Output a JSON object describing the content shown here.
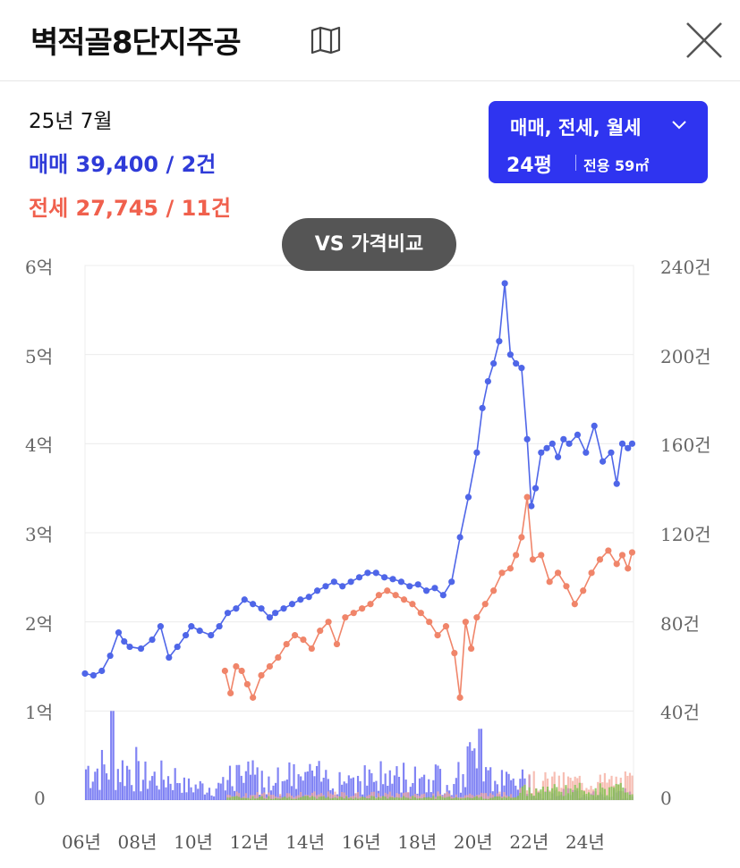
{
  "header": {
    "title": "벽적골8단지주공",
    "map_icon": "map-icon",
    "close_icon": "close-icon"
  },
  "summary": {
    "year_month": "25년 7월",
    "sale": "매매 39,400 / 2건",
    "jeonse": "전세 27,745 / 11건"
  },
  "filter": {
    "types": "매매, 전세, 월세",
    "pyeong": "24평",
    "area": "전용 59㎡"
  },
  "vs_button": "VS 가격비교",
  "colors": {
    "sale": "#4f66e8",
    "jeonse": "#f0856a",
    "volume_sale": "#4a4ff0",
    "volume_jeonse": "#f4a393",
    "volume_wolse": "#7fc24f"
  },
  "chart_data": {
    "type": "line",
    "x_axis": {
      "min": 2006,
      "max": 2025.6,
      "ticks": [
        "06년",
        "08년",
        "10년",
        "12년",
        "14년",
        "16년",
        "18년",
        "20년",
        "22년",
        "24년"
      ]
    },
    "y_left": {
      "min": 0,
      "max": 6,
      "ticks": [
        "0",
        "1억",
        "2억",
        "3억",
        "4억",
        "5억",
        "6억"
      ]
    },
    "y_right": {
      "min": 0,
      "max": 240,
      "ticks": [
        "0",
        "40건",
        "80건",
        "120건",
        "160건",
        "200건",
        "240건"
      ]
    },
    "series": [
      {
        "key": "sale",
        "x": [
          2006.0,
          2006.3,
          2006.6,
          2006.9,
          2007.2,
          2007.4,
          2007.6,
          2008.0,
          2008.4,
          2008.7,
          2009.0,
          2009.3,
          2009.6,
          2009.8,
          2010.1,
          2010.5,
          2010.8,
          2011.1,
          2011.4,
          2011.7,
          2012.0,
          2012.3,
          2012.6,
          2012.8,
          2013.1,
          2013.4,
          2013.7,
          2014.0,
          2014.3,
          2014.6,
          2014.9,
          2015.2,
          2015.5,
          2015.8,
          2016.1,
          2016.4,
          2016.7,
          2017.0,
          2017.3,
          2017.6,
          2017.9,
          2018.2,
          2018.5,
          2018.8,
          2019.1,
          2019.4,
          2019.7,
          2020.0,
          2020.2,
          2020.4,
          2020.6,
          2020.8,
          2021.0,
          2021.2,
          2021.4,
          2021.6,
          2021.8,
          2021.95,
          2022.1,
          2022.3,
          2022.5,
          2022.7,
          2022.9,
          2023.1,
          2023.3,
          2023.6,
          2023.9,
          2024.2,
          2024.5,
          2024.8,
          2025.0,
          2025.2,
          2025.4,
          2025.55
        ],
        "y": [
          1.42,
          1.4,
          1.45,
          1.62,
          1.88,
          1.78,
          1.72,
          1.7,
          1.8,
          1.95,
          1.6,
          1.72,
          1.85,
          1.95,
          1.9,
          1.85,
          1.95,
          2.1,
          2.15,
          2.25,
          2.2,
          2.15,
          2.05,
          2.1,
          2.15,
          2.2,
          2.25,
          2.28,
          2.35,
          2.4,
          2.45,
          2.4,
          2.45,
          2.5,
          2.55,
          2.55,
          2.5,
          2.48,
          2.45,
          2.4,
          2.42,
          2.35,
          2.38,
          2.3,
          2.45,
          2.95,
          3.4,
          3.9,
          4.4,
          4.7,
          4.9,
          5.15,
          5.8,
          5.0,
          4.9,
          4.85,
          4.05,
          3.3,
          3.5,
          3.9,
          3.95,
          4.0,
          3.85,
          4.05,
          4.0,
          4.1,
          3.9,
          4.2,
          3.8,
          3.9,
          3.55,
          4.0,
          3.95,
          4.0
        ]
      },
      {
        "key": "jeonse",
        "x": [
          2011.0,
          2011.2,
          2011.4,
          2011.6,
          2011.8,
          2012.0,
          2012.3,
          2012.6,
          2012.9,
          2013.2,
          2013.5,
          2013.8,
          2014.1,
          2014.4,
          2014.7,
          2015.0,
          2015.3,
          2015.6,
          2015.9,
          2016.2,
          2016.5,
          2016.8,
          2017.1,
          2017.4,
          2017.7,
          2018.0,
          2018.3,
          2018.6,
          2018.9,
          2019.2,
          2019.4,
          2019.6,
          2019.8,
          2020.0,
          2020.3,
          2020.6,
          2020.9,
          2021.2,
          2021.4,
          2021.6,
          2021.8,
          2022.0,
          2022.3,
          2022.6,
          2022.9,
          2023.2,
          2023.5,
          2023.8,
          2024.1,
          2024.4,
          2024.7,
          2025.0,
          2025.2,
          2025.4,
          2025.55
        ],
        "y": [
          1.45,
          1.2,
          1.5,
          1.45,
          1.3,
          1.15,
          1.4,
          1.5,
          1.6,
          1.75,
          1.85,
          1.8,
          1.7,
          1.9,
          2.0,
          1.75,
          2.05,
          2.1,
          2.15,
          2.2,
          2.3,
          2.35,
          2.3,
          2.25,
          2.2,
          2.1,
          2.0,
          1.85,
          1.95,
          1.65,
          1.15,
          2.0,
          1.7,
          2.05,
          2.2,
          2.35,
          2.55,
          2.6,
          2.75,
          2.95,
          3.4,
          2.7,
          2.75,
          2.45,
          2.55,
          2.4,
          2.2,
          2.35,
          2.55,
          2.7,
          2.8,
          2.65,
          2.75,
          2.6,
          2.78
        ]
      }
    ],
    "volume": {
      "axis": "right",
      "series": [
        "volume_sale",
        "volume_jeonse",
        "volume_wolse"
      ]
    },
    "legend": "none",
    "grid": true
  }
}
